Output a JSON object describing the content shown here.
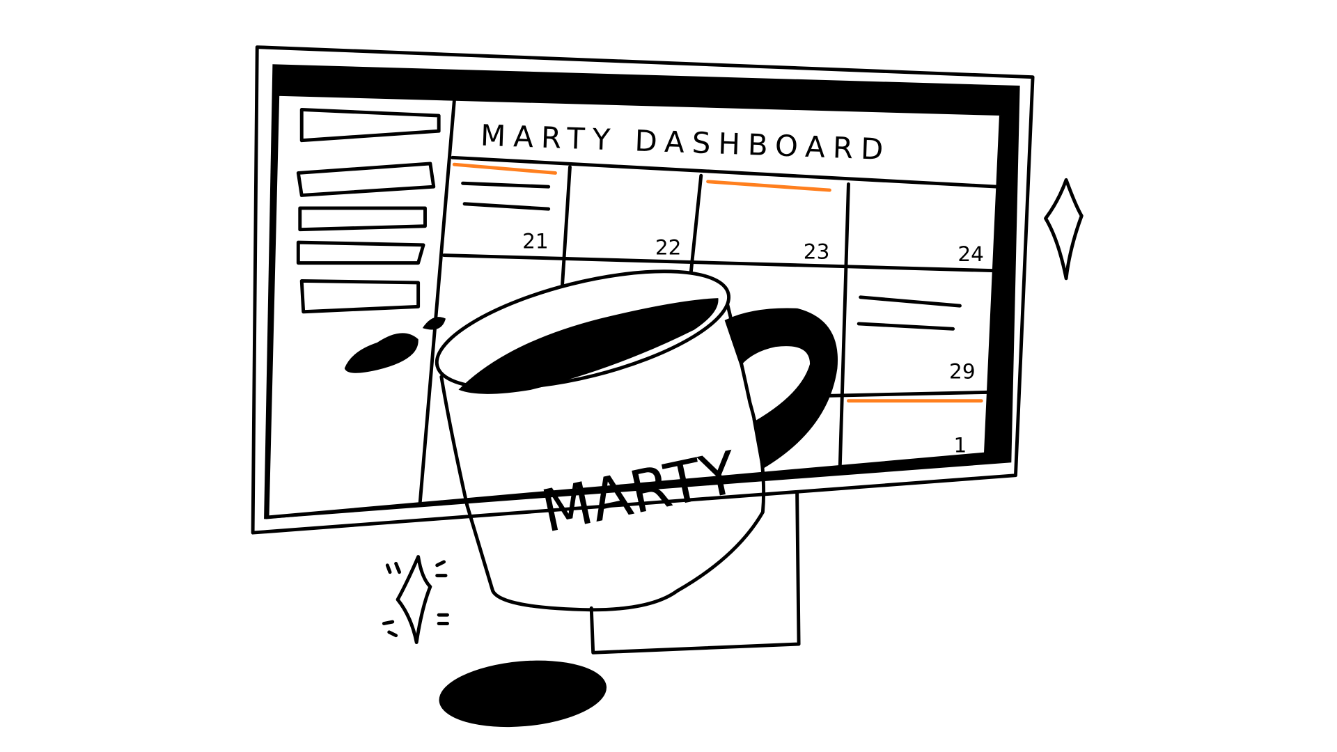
{
  "title": "MARTY DASHBOARD",
  "calendar": {
    "days": [
      "21",
      "22",
      "23",
      "24",
      "29",
      "1"
    ]
  },
  "mug": {
    "label": "MARTY"
  }
}
